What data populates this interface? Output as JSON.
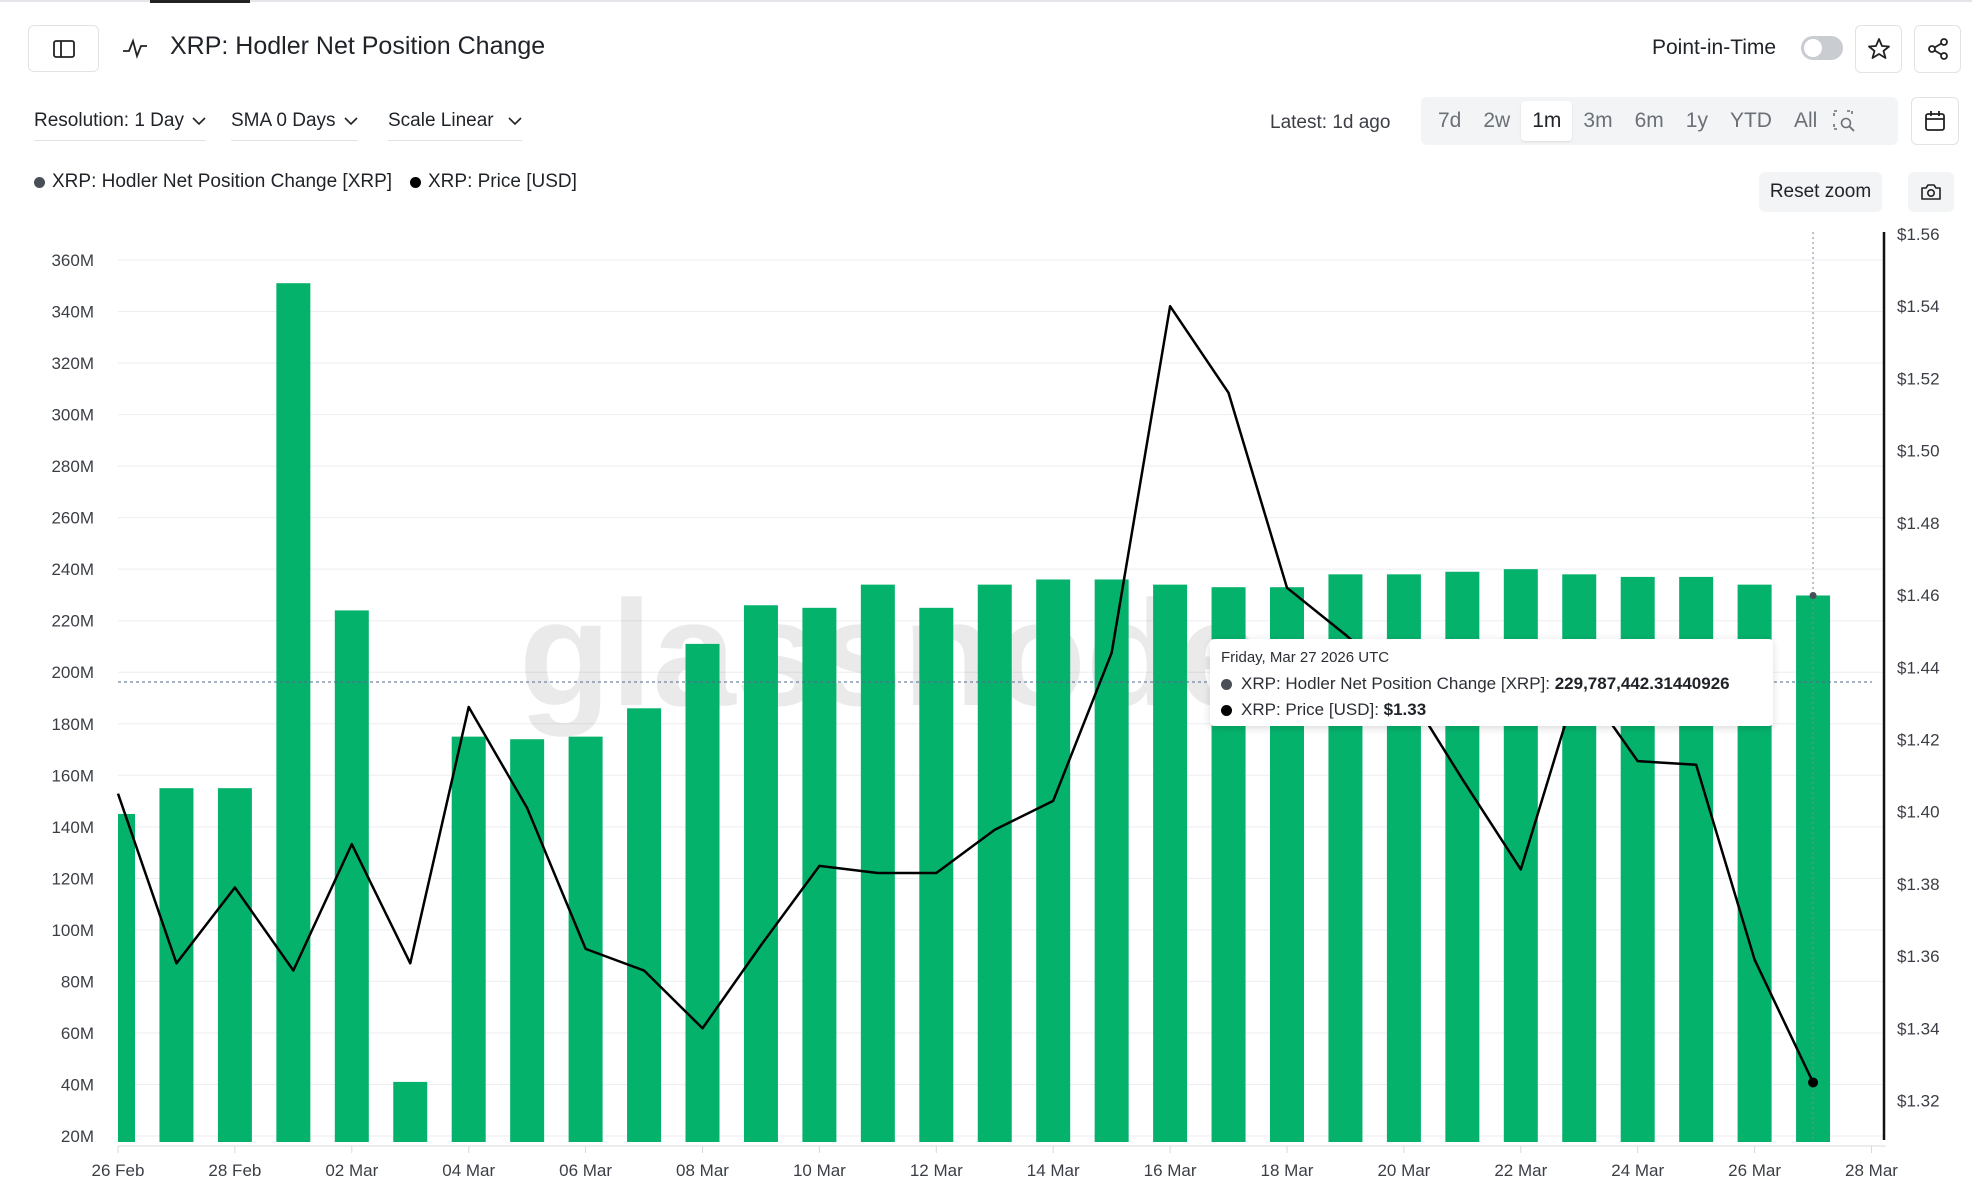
{
  "header": {
    "title": "XRP: Hodler Net Position Change",
    "point_in_time_label": "Point-in-Time",
    "point_in_time_enabled": false,
    "icons": [
      "sidebar-toggle-icon",
      "chart-line-icon",
      "star-icon",
      "share-icon"
    ]
  },
  "toolbar": {
    "resolution": "Resolution: 1 Day",
    "sma": "SMA 0 Days",
    "scale": "Scale Linear",
    "latest": "Latest: 1d ago",
    "ranges": [
      "7d",
      "2w",
      "1m",
      "3m",
      "6m",
      "1y",
      "YTD",
      "All"
    ],
    "active_range": "1m",
    "reset_zoom": "Reset zoom"
  },
  "legend": [
    {
      "label": "XRP: Hodler Net Position Change [XRP]",
      "color": "#4a4e57"
    },
    {
      "label": "XRP: Price [USD]",
      "color": "#000000"
    }
  ],
  "tooltip": {
    "date": "Friday, Mar 27 2026 UTC",
    "rows": [
      {
        "label": "XRP: Hodler Net Position Change [XRP]: ",
        "value": "229,787,442.31440926",
        "color": "#4a4e57"
      },
      {
        "label": "XRP: Price [USD]: ",
        "value": "$1.33",
        "color": "#000000"
      }
    ]
  },
  "chart_data": {
    "type": "bar",
    "x": [
      "2026-02-26",
      "2026-02-27",
      "2026-02-28",
      "2026-03-01",
      "2026-03-02",
      "2026-03-03",
      "2026-03-04",
      "2026-03-05",
      "2026-03-06",
      "2026-03-07",
      "2026-03-08",
      "2026-03-09",
      "2026-03-10",
      "2026-03-11",
      "2026-03-12",
      "2026-03-13",
      "2026-03-14",
      "2026-03-15",
      "2026-03-16",
      "2026-03-17",
      "2026-03-18",
      "2026-03-19",
      "2026-03-20",
      "2026-03-21",
      "2026-03-22",
      "2026-03-23",
      "2026-03-24",
      "2026-03-25",
      "2026-03-26",
      "2026-03-27"
    ],
    "series": [
      {
        "name": "XRP: Hodler Net Position Change [XRP]",
        "type": "bar",
        "axis": "left",
        "color": "#05b26c",
        "values": [
          145,
          155,
          155,
          351,
          224,
          41,
          175,
          174,
          175,
          186,
          211,
          226,
          225,
          234,
          225,
          234,
          236,
          236,
          234,
          233,
          233,
          238,
          238,
          239,
          240,
          238,
          237,
          237,
          234,
          229.79
        ]
      },
      {
        "name": "XRP: Price [USD]",
        "type": "line",
        "axis": "right",
        "color": "#000000",
        "values": [
          1.405,
          1.358,
          1.379,
          1.356,
          1.391,
          1.358,
          1.429,
          1.401,
          1.362,
          1.356,
          1.34,
          1.363,
          1.385,
          1.383,
          1.383,
          1.395,
          1.403,
          1.444,
          1.54,
          1.516,
          1.462,
          1.449,
          1.435,
          1.409,
          1.384,
          1.437,
          1.414,
          1.413,
          1.359,
          1.325
        ]
      }
    ],
    "x_ticks": [
      "26 Feb",
      "28 Feb",
      "02 Mar",
      "04 Mar",
      "06 Mar",
      "08 Mar",
      "10 Mar",
      "12 Mar",
      "14 Mar",
      "16 Mar",
      "18 Mar",
      "20 Mar",
      "22 Mar",
      "24 Mar",
      "26 Mar",
      "28 Mar"
    ],
    "y_left_ticks": [
      "20M",
      "40M",
      "60M",
      "80M",
      "100M",
      "120M",
      "140M",
      "160M",
      "180M",
      "200M",
      "220M",
      "240M",
      "260M",
      "280M",
      "300M",
      "320M",
      "340M",
      "360M"
    ],
    "y_right_ticks": [
      "$1.32",
      "$1.34",
      "$1.36",
      "$1.38",
      "$1.40",
      "$1.42",
      "$1.44",
      "$1.46",
      "$1.48",
      "$1.50",
      "$1.52",
      "$1.54",
      "$1.56"
    ],
    "ylim_left_millions": [
      20,
      360
    ],
    "ylim_right_usd": [
      1.32,
      1.56
    ],
    "xlim": [
      "2026-02-26",
      "2026-03-28"
    ],
    "grid": true,
    "legend_placement": "top-left",
    "highlighted_date": "2026-03-27"
  }
}
